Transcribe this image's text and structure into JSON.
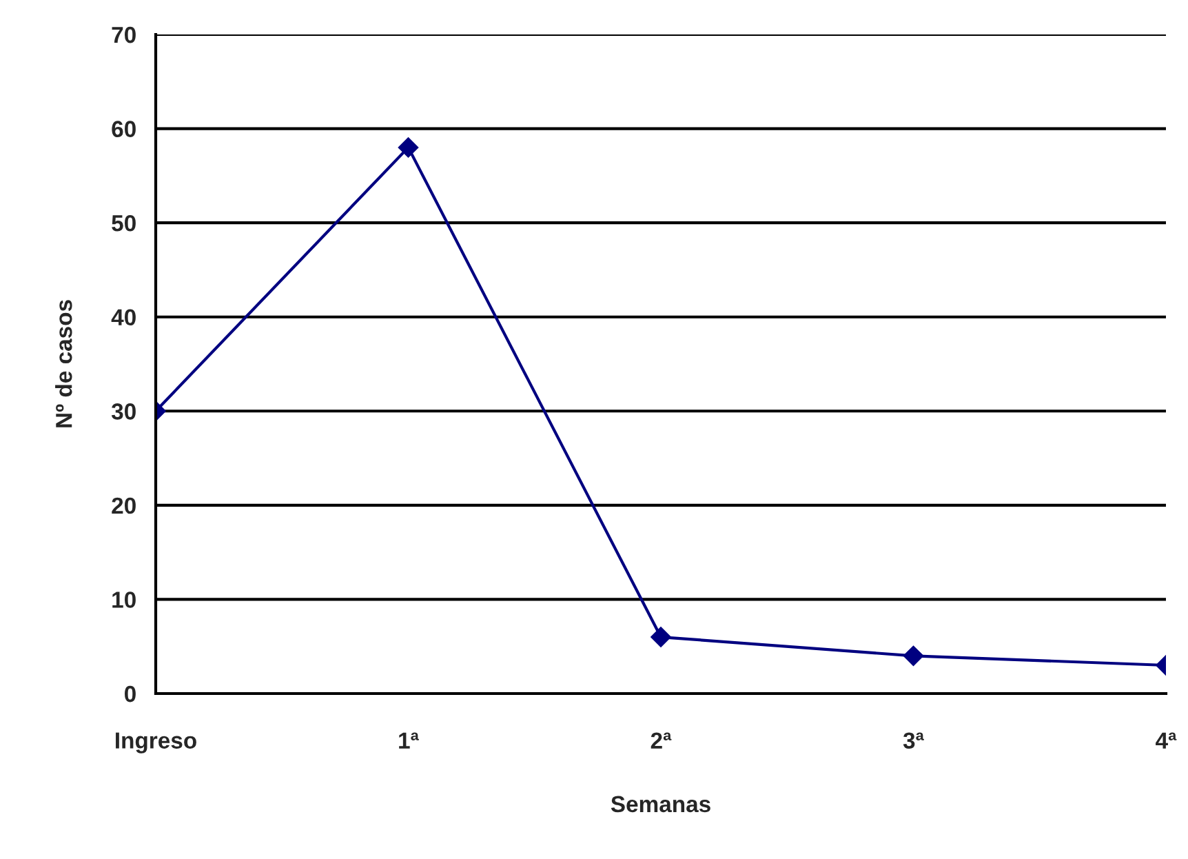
{
  "chart_data": {
    "type": "line",
    "xlabel": "Semanas",
    "ylabel": "Nº de casos",
    "categories": [
      "Ingreso",
      "1ª",
      "2ª",
      "3ª",
      "4ª"
    ],
    "series": [
      {
        "color": "#000080",
        "values": [
          30,
          58,
          6,
          4,
          3
        ]
      }
    ],
    "ylim": [
      0,
      70
    ],
    "yticks": [
      0,
      10,
      20,
      30,
      40,
      50,
      60,
      70
    ],
    "grid": "y",
    "marker": "diamond",
    "line_style": "solid",
    "legend": false
  }
}
